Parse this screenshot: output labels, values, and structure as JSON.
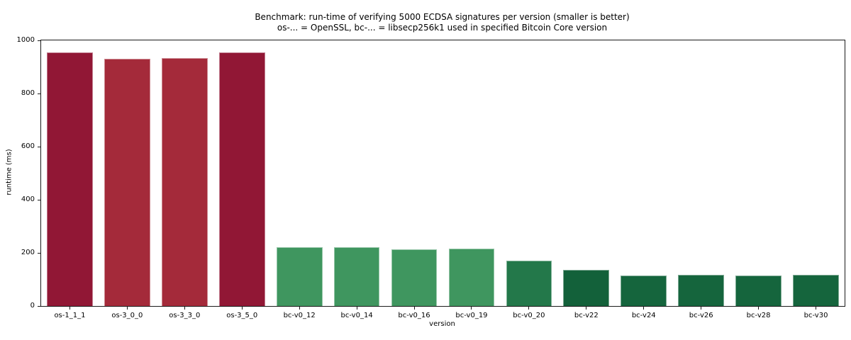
{
  "chart_data": {
    "type": "bar",
    "title": "Benchmark: run-time of verifying 5000 ECDSA signatures per version (smaller is better)",
    "subtitle": "os-... = OpenSSL, bc-... = libsecp256k1 used in specified Bitcoin Core version",
    "xlabel": "version",
    "ylabel": "runtime (ms)",
    "ylim": [
      0,
      1000
    ],
    "yticks": [
      0,
      200,
      400,
      600,
      800,
      1000
    ],
    "grid": false,
    "legend_position": "none",
    "categories": [
      "os-1_1_1",
      "os-3_0_0",
      "os-3_3_0",
      "os-3_5_0",
      "bc-v0_12",
      "bc-v0_14",
      "bc-v0_16",
      "bc-v0_19",
      "bc-v0_20",
      "bc-v22",
      "bc-v24",
      "bc-v26",
      "bc-v28",
      "bc-v30"
    ],
    "values": [
      955,
      930,
      933,
      954,
      221,
      221,
      213,
      217,
      170,
      137,
      116,
      117,
      116,
      117
    ],
    "bar_colors": [
      "#911735",
      "#a42a3a",
      "#a42a3a",
      "#911735",
      "#3f965f",
      "#3f965f",
      "#3f965f",
      "#3f965f",
      "#23784a",
      "#13613a",
      "#15653d",
      "#15653d",
      "#15653d",
      "#15653d"
    ]
  }
}
